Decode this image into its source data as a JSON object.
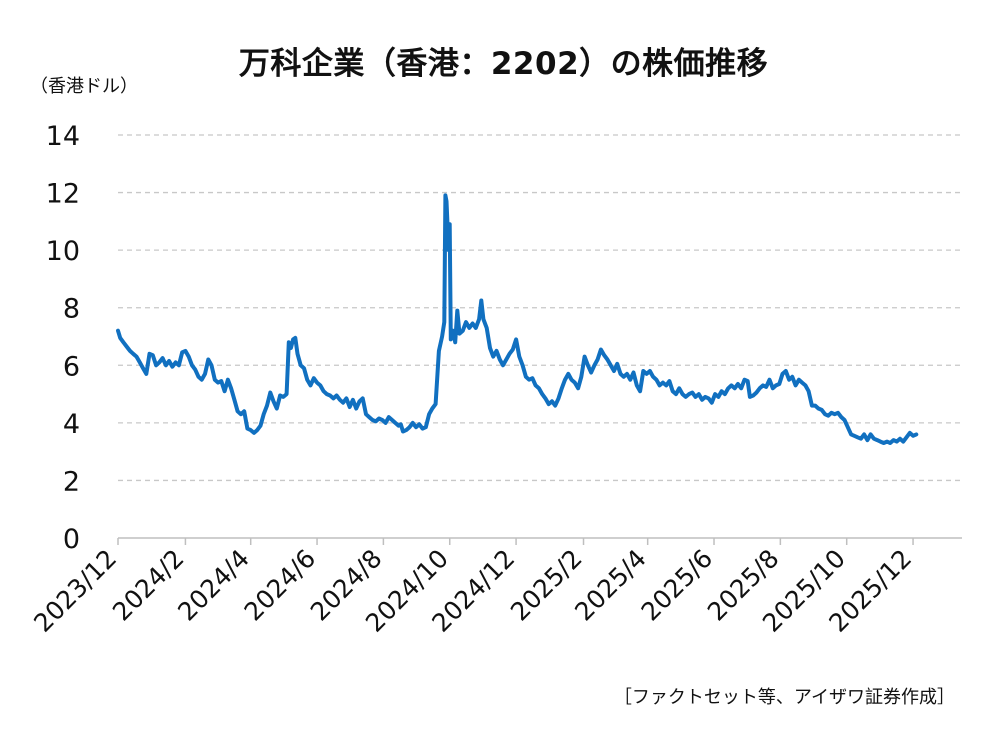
{
  "chart_data": {
    "type": "line",
    "title": "万科企業（香港：2202）の株価推移",
    "ylabel": "（香港ドル）",
    "source": "［ファクトセット等、アイザワ証券作成］",
    "ylim": [
      0,
      14
    ],
    "yticks": [
      0,
      2,
      4,
      6,
      8,
      10,
      12,
      14
    ],
    "grid": true,
    "xlabels": [
      "2023/12",
      "2024/2",
      "2024/4",
      "2024/6",
      "2024/8",
      "2024/10",
      "2024/12",
      "2025/2",
      "2025/4",
      "2025/6",
      "2025/8",
      "2025/10",
      "2025/12"
    ],
    "x_start": "2023-12-01",
    "x_end": "2026-01-15",
    "colors": {
      "line": "#1170c0",
      "grid": "#c8c8c8",
      "axis": "#bfbfbf"
    },
    "series": [
      {
        "points": [
          [
            "2023-12-01",
            7.2
          ],
          [
            "2023-12-03",
            6.95
          ],
          [
            "2023-12-06",
            6.8
          ],
          [
            "2023-12-09",
            6.65
          ],
          [
            "2023-12-12",
            6.5
          ],
          [
            "2023-12-15",
            6.4
          ],
          [
            "2023-12-18",
            6.3
          ],
          [
            "2023-12-21",
            6.1
          ],
          [
            "2023-12-24",
            5.9
          ],
          [
            "2023-12-27",
            5.7
          ],
          [
            "2023-12-30",
            6.4
          ],
          [
            "2024-01-02",
            6.35
          ],
          [
            "2024-01-05",
            6.0
          ],
          [
            "2024-01-08",
            6.1
          ],
          [
            "2024-01-11",
            6.25
          ],
          [
            "2024-01-14",
            6.0
          ],
          [
            "2024-01-17",
            6.15
          ],
          [
            "2024-01-20",
            5.95
          ],
          [
            "2024-01-23",
            6.1
          ],
          [
            "2024-01-26",
            6.0
          ],
          [
            "2024-01-29",
            6.45
          ],
          [
            "2024-02-01",
            6.5
          ],
          [
            "2024-02-04",
            6.3
          ],
          [
            "2024-02-07",
            6.0
          ],
          [
            "2024-02-10",
            5.85
          ],
          [
            "2024-02-13",
            5.6
          ],
          [
            "2024-02-16",
            5.5
          ],
          [
            "2024-02-19",
            5.7
          ],
          [
            "2024-02-22",
            6.2
          ],
          [
            "2024-02-25",
            6.0
          ],
          [
            "2024-02-28",
            5.5
          ],
          [
            "2024-03-02",
            5.4
          ],
          [
            "2024-03-05",
            5.45
          ],
          [
            "2024-03-08",
            5.1
          ],
          [
            "2024-03-11",
            5.5
          ],
          [
            "2024-03-14",
            5.2
          ],
          [
            "2024-03-17",
            4.8
          ],
          [
            "2024-03-20",
            4.4
          ],
          [
            "2024-03-23",
            4.3
          ],
          [
            "2024-03-26",
            4.4
          ],
          [
            "2024-03-29",
            3.8
          ],
          [
            "2024-04-01",
            3.75
          ],
          [
            "2024-04-04",
            3.65
          ],
          [
            "2024-04-07",
            3.75
          ],
          [
            "2024-04-10",
            3.9
          ],
          [
            "2024-04-13",
            4.3
          ],
          [
            "2024-04-16",
            4.6
          ],
          [
            "2024-04-19",
            5.05
          ],
          [
            "2024-04-22",
            4.75
          ],
          [
            "2024-04-25",
            4.5
          ],
          [
            "2024-04-28",
            4.95
          ],
          [
            "2024-05-01",
            4.9
          ],
          [
            "2024-05-04",
            5.0
          ],
          [
            "2024-05-06",
            6.8
          ],
          [
            "2024-05-08",
            6.6
          ],
          [
            "2024-05-10",
            6.9
          ],
          [
            "2024-05-12",
            6.95
          ],
          [
            "2024-05-14",
            6.4
          ],
          [
            "2024-05-17",
            6.0
          ],
          [
            "2024-05-20",
            5.9
          ],
          [
            "2024-05-23",
            5.5
          ],
          [
            "2024-05-26",
            5.3
          ],
          [
            "2024-05-29",
            5.55
          ],
          [
            "2024-06-01",
            5.4
          ],
          [
            "2024-06-04",
            5.3
          ],
          [
            "2024-06-07",
            5.1
          ],
          [
            "2024-06-10",
            5.0
          ],
          [
            "2024-06-13",
            4.95
          ],
          [
            "2024-06-16",
            4.85
          ],
          [
            "2024-06-19",
            4.95
          ],
          [
            "2024-06-22",
            4.8
          ],
          [
            "2024-06-25",
            4.7
          ],
          [
            "2024-06-28",
            4.85
          ],
          [
            "2024-07-01",
            4.55
          ],
          [
            "2024-07-04",
            4.8
          ],
          [
            "2024-07-07",
            4.5
          ],
          [
            "2024-07-10",
            4.75
          ],
          [
            "2024-07-13",
            4.85
          ],
          [
            "2024-07-16",
            4.3
          ],
          [
            "2024-07-19",
            4.2
          ],
          [
            "2024-07-22",
            4.1
          ],
          [
            "2024-07-25",
            4.05
          ],
          [
            "2024-07-28",
            4.15
          ],
          [
            "2024-07-31",
            4.1
          ],
          [
            "2024-08-03",
            4.0
          ],
          [
            "2024-08-06",
            4.2
          ],
          [
            "2024-08-09",
            4.1
          ],
          [
            "2024-08-12",
            4.0
          ],
          [
            "2024-08-15",
            3.9
          ],
          [
            "2024-08-17",
            3.95
          ],
          [
            "2024-08-19",
            3.7
          ],
          [
            "2024-08-22",
            3.75
          ],
          [
            "2024-08-25",
            3.85
          ],
          [
            "2024-08-28",
            4.0
          ],
          [
            "2024-08-31",
            3.85
          ],
          [
            "2024-09-03",
            3.95
          ],
          [
            "2024-09-06",
            3.8
          ],
          [
            "2024-09-09",
            3.85
          ],
          [
            "2024-09-12",
            4.3
          ],
          [
            "2024-09-15",
            4.5
          ],
          [
            "2024-09-18",
            4.65
          ],
          [
            "2024-09-21",
            6.5
          ],
          [
            "2024-09-24",
            7.0
          ],
          [
            "2024-09-26",
            7.5
          ],
          [
            "2024-09-27",
            11.9
          ],
          [
            "2024-09-28",
            11.7
          ],
          [
            "2024-09-30",
            10.0
          ],
          [
            "2024-10-01",
            10.9
          ],
          [
            "2024-10-02",
            6.9
          ],
          [
            "2024-10-04",
            7.2
          ],
          [
            "2024-10-06",
            6.8
          ],
          [
            "2024-10-08",
            7.9
          ],
          [
            "2024-10-10",
            7.1
          ],
          [
            "2024-10-13",
            7.2
          ],
          [
            "2024-10-16",
            7.5
          ],
          [
            "2024-10-19",
            7.3
          ],
          [
            "2024-10-22",
            7.45
          ],
          [
            "2024-10-25",
            7.3
          ],
          [
            "2024-10-28",
            7.6
          ],
          [
            "2024-10-30",
            8.25
          ],
          [
            "2024-11-01",
            7.6
          ],
          [
            "2024-11-04",
            7.3
          ],
          [
            "2024-11-07",
            6.6
          ],
          [
            "2024-11-10",
            6.3
          ],
          [
            "2024-11-13",
            6.5
          ],
          [
            "2024-11-16",
            6.2
          ],
          [
            "2024-11-19",
            6.0
          ],
          [
            "2024-11-22",
            6.2
          ],
          [
            "2024-11-25",
            6.4
          ],
          [
            "2024-11-28",
            6.55
          ],
          [
            "2024-12-01",
            6.9
          ],
          [
            "2024-12-04",
            6.3
          ],
          [
            "2024-12-07",
            6.0
          ],
          [
            "2024-12-10",
            5.6
          ],
          [
            "2024-12-13",
            5.5
          ],
          [
            "2024-12-16",
            5.55
          ],
          [
            "2024-12-19",
            5.3
          ],
          [
            "2024-12-22",
            5.2
          ],
          [
            "2024-12-25",
            5.0
          ],
          [
            "2024-12-28",
            4.85
          ],
          [
            "2024-12-31",
            4.65
          ],
          [
            "2025-01-03",
            4.75
          ],
          [
            "2025-01-06",
            4.6
          ],
          [
            "2025-01-09",
            4.85
          ],
          [
            "2025-01-12",
            5.2
          ],
          [
            "2025-01-15",
            5.5
          ],
          [
            "2025-01-18",
            5.7
          ],
          [
            "2025-01-21",
            5.5
          ],
          [
            "2025-01-24",
            5.4
          ],
          [
            "2025-01-27",
            5.2
          ],
          [
            "2025-01-30",
            5.6
          ],
          [
            "2025-02-02",
            6.3
          ],
          [
            "2025-02-05",
            6.0
          ],
          [
            "2025-02-08",
            5.75
          ],
          [
            "2025-02-11",
            6.0
          ],
          [
            "2025-02-14",
            6.2
          ],
          [
            "2025-02-17",
            6.55
          ],
          [
            "2025-02-20",
            6.35
          ],
          [
            "2025-02-23",
            6.2
          ],
          [
            "2025-02-26",
            6.0
          ],
          [
            "2025-03-01",
            5.8
          ],
          [
            "2025-03-04",
            6.05
          ],
          [
            "2025-03-07",
            5.7
          ],
          [
            "2025-03-10",
            5.6
          ],
          [
            "2025-03-13",
            5.7
          ],
          [
            "2025-03-16",
            5.5
          ],
          [
            "2025-03-19",
            5.75
          ],
          [
            "2025-03-22",
            5.3
          ],
          [
            "2025-03-25",
            5.1
          ],
          [
            "2025-03-28",
            5.8
          ],
          [
            "2025-03-31",
            5.7
          ],
          [
            "2025-04-03",
            5.8
          ],
          [
            "2025-04-06",
            5.6
          ],
          [
            "2025-04-09",
            5.5
          ],
          [
            "2025-04-12",
            5.3
          ],
          [
            "2025-04-15",
            5.4
          ],
          [
            "2025-04-18",
            5.3
          ],
          [
            "2025-04-21",
            5.45
          ],
          [
            "2025-04-24",
            5.1
          ],
          [
            "2025-04-27",
            5.0
          ],
          [
            "2025-04-30",
            5.2
          ],
          [
            "2025-05-03",
            5.0
          ],
          [
            "2025-05-06",
            4.9
          ],
          [
            "2025-05-09",
            5.0
          ],
          [
            "2025-05-12",
            5.05
          ],
          [
            "2025-05-15",
            4.9
          ],
          [
            "2025-05-18",
            5.0
          ],
          [
            "2025-05-21",
            4.8
          ],
          [
            "2025-05-24",
            4.9
          ],
          [
            "2025-05-27",
            4.85
          ],
          [
            "2025-05-30",
            4.7
          ],
          [
            "2025-06-02",
            5.0
          ],
          [
            "2025-06-05",
            4.9
          ],
          [
            "2025-06-08",
            5.1
          ],
          [
            "2025-06-11",
            5.0
          ],
          [
            "2025-06-14",
            5.2
          ],
          [
            "2025-06-17",
            5.3
          ],
          [
            "2025-06-20",
            5.2
          ],
          [
            "2025-06-23",
            5.35
          ],
          [
            "2025-06-26",
            5.2
          ],
          [
            "2025-06-29",
            5.5
          ],
          [
            "2025-07-02",
            5.45
          ],
          [
            "2025-07-04",
            4.9
          ],
          [
            "2025-07-07",
            4.95
          ],
          [
            "2025-07-10",
            5.05
          ],
          [
            "2025-07-13",
            5.2
          ],
          [
            "2025-07-16",
            5.3
          ],
          [
            "2025-07-19",
            5.25
          ],
          [
            "2025-07-22",
            5.5
          ],
          [
            "2025-07-25",
            5.2
          ],
          [
            "2025-07-28",
            5.3
          ],
          [
            "2025-07-31",
            5.35
          ],
          [
            "2025-08-03",
            5.7
          ],
          [
            "2025-08-06",
            5.8
          ],
          [
            "2025-08-09",
            5.5
          ],
          [
            "2025-08-12",
            5.6
          ],
          [
            "2025-08-15",
            5.3
          ],
          [
            "2025-08-18",
            5.5
          ],
          [
            "2025-08-21",
            5.4
          ],
          [
            "2025-08-24",
            5.3
          ],
          [
            "2025-08-27",
            5.1
          ],
          [
            "2025-08-30",
            4.6
          ],
          [
            "2025-09-02",
            4.6
          ],
          [
            "2025-09-05",
            4.5
          ],
          [
            "2025-09-08",
            4.45
          ],
          [
            "2025-09-11",
            4.3
          ],
          [
            "2025-09-14",
            4.25
          ],
          [
            "2025-09-17",
            4.35
          ],
          [
            "2025-09-20",
            4.3
          ],
          [
            "2025-09-23",
            4.35
          ],
          [
            "2025-09-26",
            4.2
          ],
          [
            "2025-09-29",
            4.1
          ],
          [
            "2025-10-02",
            3.85
          ],
          [
            "2025-10-05",
            3.6
          ],
          [
            "2025-10-08",
            3.55
          ],
          [
            "2025-10-11",
            3.5
          ],
          [
            "2025-10-14",
            3.45
          ],
          [
            "2025-10-17",
            3.6
          ],
          [
            "2025-10-20",
            3.4
          ],
          [
            "2025-10-23",
            3.6
          ],
          [
            "2025-10-26",
            3.45
          ],
          [
            "2025-10-29",
            3.4
          ],
          [
            "2025-11-01",
            3.35
          ],
          [
            "2025-11-04",
            3.3
          ],
          [
            "2025-11-07",
            3.35
          ],
          [
            "2025-11-10",
            3.3
          ],
          [
            "2025-11-13",
            3.4
          ],
          [
            "2025-11-16",
            3.35
          ],
          [
            "2025-11-19",
            3.45
          ],
          [
            "2025-11-22",
            3.35
          ],
          [
            "2025-11-25",
            3.5
          ],
          [
            "2025-11-28",
            3.65
          ],
          [
            "2025-12-01",
            3.55
          ],
          [
            "2025-12-04",
            3.6
          ]
        ]
      }
    ]
  }
}
